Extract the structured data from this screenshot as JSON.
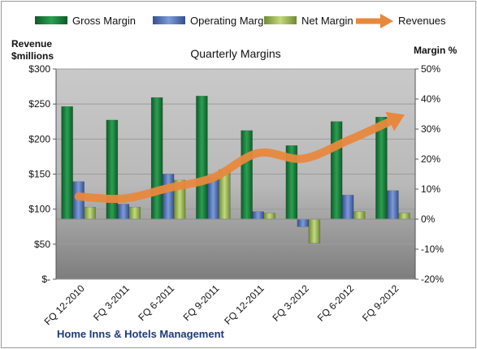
{
  "chart_data": {
    "type": "bar",
    "title": "Quarterly Margins",
    "source_label": "Home Inns & Hotels Management",
    "categories": [
      "FQ 12-2010",
      "FQ 3-2011",
      "FQ 6-2011",
      "FQ 9-2011",
      "FQ 12-2011",
      "FQ 3-2012",
      "FQ 6-2012",
      "FQ 9-2012"
    ],
    "left_axis": {
      "label_line1": "Revenue",
      "label_line2": "$millions",
      "ylim": [
        0,
        300
      ],
      "ticks": [
        0,
        50,
        100,
        150,
        200,
        250,
        300
      ],
      "tick_labels": [
        "$-",
        "$50",
        "$100",
        "$150",
        "$200",
        "$250",
        "$300"
      ]
    },
    "right_axis": {
      "label": "Margin %",
      "ylim": [
        -20,
        50
      ],
      "ticks": [
        -20,
        -10,
        0,
        10,
        20,
        30,
        40,
        50
      ],
      "tick_labels": [
        "-20%",
        "-10%",
        "0%",
        "10%",
        "20%",
        "30%",
        "40%",
        "50%"
      ]
    },
    "series": [
      {
        "name": "Gross Margin",
        "type": "bar",
        "axis": "right",
        "color": "#1e7a3c",
        "values": [
          37.5,
          33.0,
          40.5,
          41.0,
          29.5,
          24.5,
          32.5,
          34.0
        ]
      },
      {
        "name": "Operating Margin",
        "type": "bar",
        "axis": "right",
        "color": "#4f6fb5",
        "values": [
          12.5,
          5.0,
          15.0,
          14.0,
          2.5,
          -2.5,
          8.0,
          9.5
        ]
      },
      {
        "name": "Net Margin",
        "type": "bar",
        "axis": "right",
        "color": "#98b552",
        "values": [
          4.0,
          4.0,
          13.0,
          16.5,
          2.0,
          -8.0,
          2.5,
          2.0
        ]
      },
      {
        "name": "Revenues",
        "type": "arrow-line",
        "axis": "left",
        "color": "#e8883d",
        "values": [
          118,
          115,
          130,
          145,
          180,
          172,
          198,
          227
        ]
      }
    ],
    "grid": true,
    "legend_position": "top"
  }
}
